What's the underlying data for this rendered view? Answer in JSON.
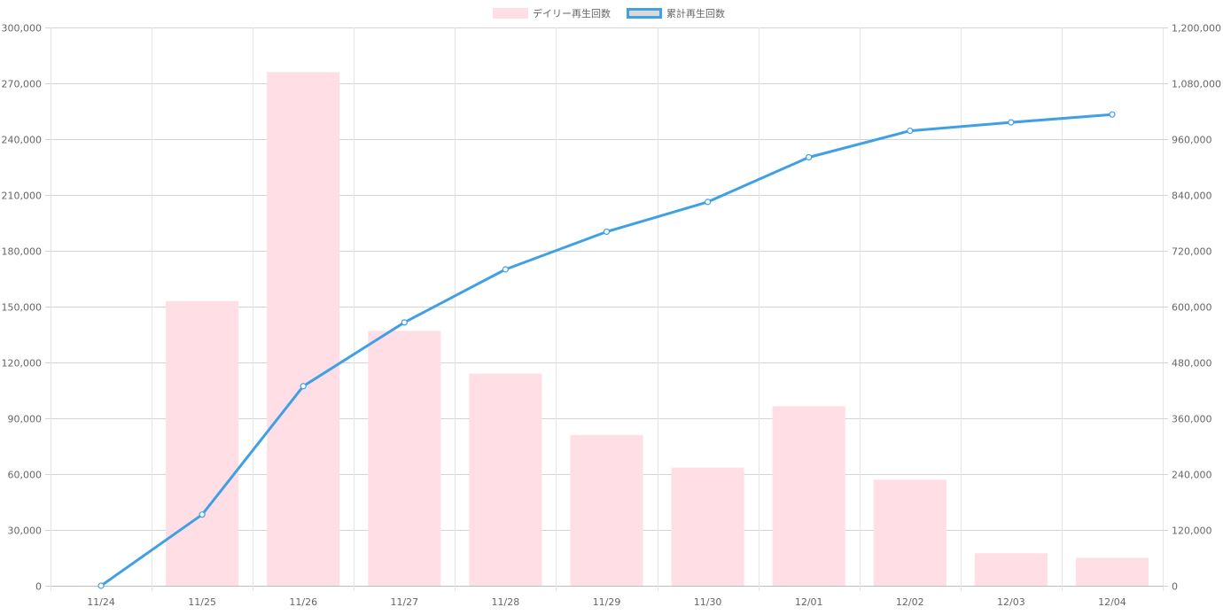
{
  "chart_data": {
    "type": "bar",
    "categories": [
      "11/24",
      "11/25",
      "11/26",
      "11/27",
      "11/28",
      "11/29",
      "11/30",
      "12/01",
      "12/02",
      "12/03",
      "12/04"
    ],
    "series": [
      {
        "name": "デイリー再生回数",
        "type": "bar",
        "axis": "left",
        "color": "#ffdfe5",
        "values": [
          0,
          153000,
          276000,
          137000,
          114000,
          81000,
          63500,
          96500,
          57000,
          17500,
          15000
        ]
      },
      {
        "name": "累計再生回数",
        "type": "line",
        "axis": "right",
        "color": "#3fa0e6",
        "legend_fill": "#d9d9d9",
        "values": [
          0,
          153000,
          429000,
          566000,
          680000,
          761000,
          825000,
          921000,
          978000,
          996000,
          1013000
        ]
      }
    ],
    "y_left": {
      "min": 0,
      "max": 300000,
      "ticks": [
        "0",
        "30,000",
        "60,000",
        "90,000",
        "120,000",
        "150,000",
        "180,000",
        "210,000",
        "240,000",
        "270,000",
        "300,000"
      ]
    },
    "y_right": {
      "min": 0,
      "max": 1200000,
      "ticks": [
        "0",
        "120,000",
        "240,000",
        "360,000",
        "480,000",
        "600,000",
        "720,000",
        "840,000",
        "960,000",
        "1,080,000",
        "1,200,000"
      ]
    },
    "grid": true,
    "legend_position": "top"
  }
}
